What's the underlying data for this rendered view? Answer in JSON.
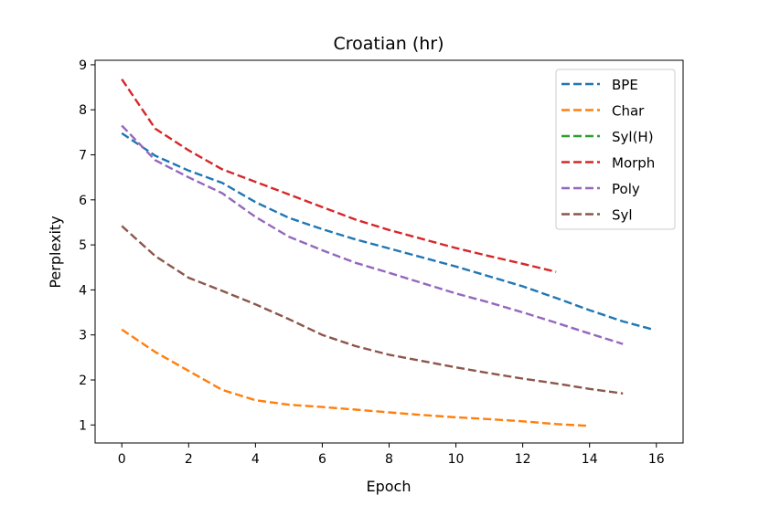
{
  "chart_data": {
    "type": "line",
    "title": "Croatian (hr)",
    "xlabel": "Epoch",
    "ylabel": "Perplexity",
    "xlim": [
      -0.8,
      16.8
    ],
    "ylim": [
      0.6,
      9.1
    ],
    "xticks": [
      0,
      2,
      4,
      6,
      8,
      10,
      12,
      14,
      16
    ],
    "yticks": [
      1,
      2,
      3,
      4,
      5,
      6,
      7,
      8,
      9
    ],
    "xtick_labels": [
      "0",
      "2",
      "4",
      "6",
      "8",
      "10",
      "12",
      "14",
      "16"
    ],
    "ytick_labels": [
      "1",
      "2",
      "3",
      "4",
      "5",
      "6",
      "7",
      "8",
      "9"
    ],
    "grid": false,
    "legend_position": "top-right",
    "line_style": "dashed",
    "series": [
      {
        "name": "BPE",
        "color": "#1f77b4",
        "x": [
          0,
          1,
          2,
          3,
          4,
          5,
          6,
          7,
          8,
          9,
          10,
          11,
          12,
          13,
          14,
          15,
          15.9
        ],
        "y": [
          7.48,
          6.98,
          6.65,
          6.38,
          5.95,
          5.6,
          5.35,
          5.12,
          4.92,
          4.72,
          4.52,
          4.3,
          4.08,
          3.82,
          3.55,
          3.3,
          3.12
        ]
      },
      {
        "name": "Char",
        "color": "#ff7f0e",
        "x": [
          0,
          1,
          2,
          3,
          4,
          5,
          6,
          7,
          8,
          9,
          10,
          11,
          12,
          13,
          14
        ],
        "y": [
          3.12,
          2.62,
          2.2,
          1.78,
          1.55,
          1.45,
          1.4,
          1.34,
          1.28,
          1.22,
          1.17,
          1.13,
          1.08,
          1.02,
          0.98
        ]
      },
      {
        "name": "Syl(H)",
        "color": "#2ca02c",
        "x": [],
        "y": []
      },
      {
        "name": "Morph",
        "color": "#d62728",
        "x": [
          0,
          1,
          2,
          3,
          4,
          5,
          6,
          7,
          8,
          9,
          10,
          11,
          12,
          13
        ],
        "y": [
          8.68,
          7.58,
          7.1,
          6.68,
          6.4,
          6.12,
          5.84,
          5.56,
          5.33,
          5.13,
          4.93,
          4.75,
          4.58,
          4.4
        ]
      },
      {
        "name": "Poly",
        "color": "#9467bd",
        "x": [
          0,
          1,
          2,
          3,
          4,
          5,
          6,
          7,
          8,
          9,
          10,
          11,
          12,
          13,
          14,
          15
        ],
        "y": [
          7.65,
          6.88,
          6.5,
          6.15,
          5.62,
          5.18,
          4.88,
          4.6,
          4.38,
          4.15,
          3.92,
          3.72,
          3.5,
          3.27,
          3.03,
          2.8
        ]
      },
      {
        "name": "Syl",
        "color": "#8c564b",
        "x": [
          0,
          1,
          2,
          3,
          4,
          5,
          6,
          7,
          8,
          9,
          10,
          11,
          12,
          13,
          14,
          15
        ],
        "y": [
          5.42,
          4.75,
          4.27,
          3.98,
          3.68,
          3.35,
          3.0,
          2.75,
          2.56,
          2.42,
          2.28,
          2.15,
          2.03,
          1.92,
          1.8,
          1.7
        ]
      }
    ]
  }
}
